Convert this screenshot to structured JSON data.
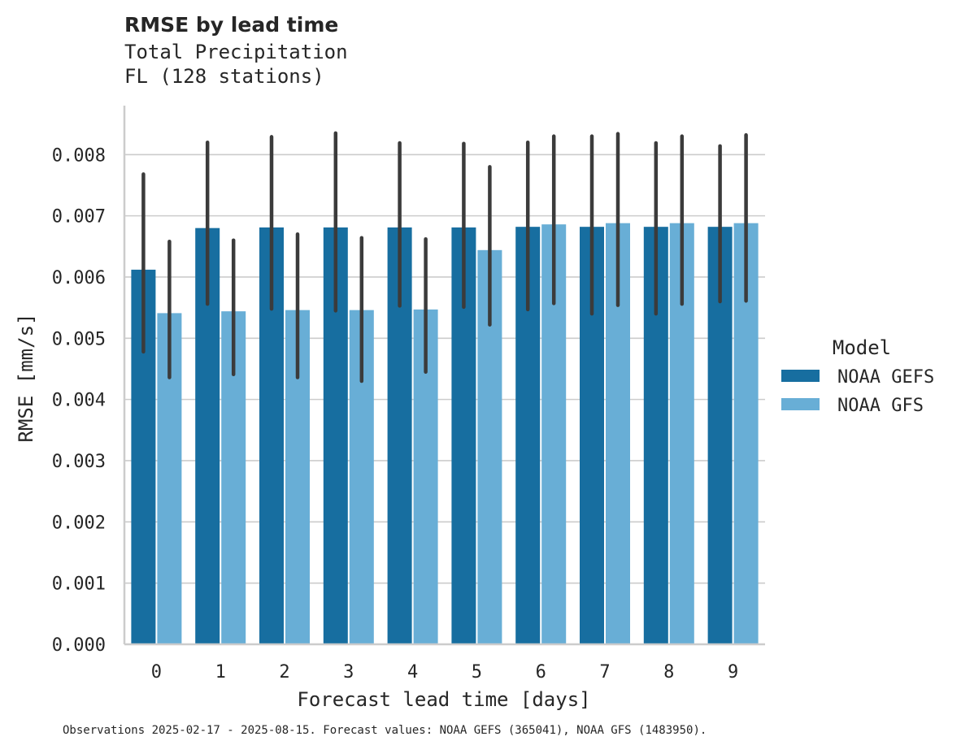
{
  "chart_data": {
    "type": "bar",
    "title": "RMSE by lead time",
    "subtitle_lines": [
      "Total Precipitation",
      "FL (128 stations)"
    ],
    "xlabel": "Forecast lead time [days]",
    "ylabel": "RMSE [mm/s]",
    "categories": [
      "0",
      "1",
      "2",
      "3",
      "4",
      "5",
      "6",
      "7",
      "8",
      "9"
    ],
    "ylim": [
      0,
      0.0088
    ],
    "yticks": [
      "0.000",
      "0.001",
      "0.002",
      "0.003",
      "0.004",
      "0.005",
      "0.006",
      "0.007",
      "0.008"
    ],
    "grid": "horizontal",
    "legend": {
      "title": "Model",
      "position": "right"
    },
    "series": [
      {
        "name": "NOAA GEFS",
        "color": "#176ea0",
        "values": [
          0.00612,
          0.0068,
          0.00681,
          0.00681,
          0.00681,
          0.00681,
          0.00682,
          0.00682,
          0.00682,
          0.00682
        ],
        "err_low": [
          0.00478,
          0.00556,
          0.00548,
          0.00545,
          0.00553,
          0.00551,
          0.00547,
          0.0054,
          0.0054,
          0.0056
        ],
        "err_high": [
          0.00768,
          0.0082,
          0.00829,
          0.00835,
          0.00819,
          0.00818,
          0.0082,
          0.0083,
          0.00819,
          0.00814
        ]
      },
      {
        "name": "NOAA GFS",
        "color": "#68aed6",
        "values": [
          0.00541,
          0.00544,
          0.00546,
          0.00546,
          0.00547,
          0.00644,
          0.00686,
          0.00688,
          0.00688,
          0.00688
        ],
        "err_low": [
          0.00436,
          0.00441,
          0.00436,
          0.0043,
          0.00445,
          0.00522,
          0.00557,
          0.00554,
          0.00556,
          0.00561
        ],
        "err_high": [
          0.00658,
          0.0066,
          0.0067,
          0.00664,
          0.00662,
          0.0078,
          0.0083,
          0.00834,
          0.0083,
          0.00832
        ]
      }
    ]
  },
  "footer": "Observations 2025-02-17 - 2025-08-15. Forecast values: NOAA GEFS (365041), NOAA GFS (1483950)."
}
